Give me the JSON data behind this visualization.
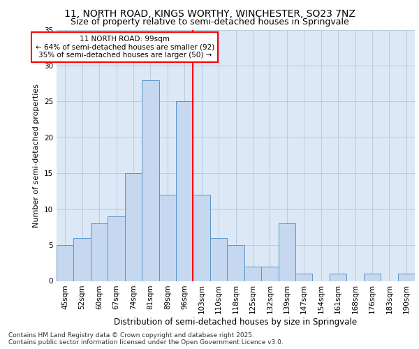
{
  "title1": "11, NORTH ROAD, KINGS WORTHY, WINCHESTER, SO23 7NZ",
  "title2": "Size of property relative to semi-detached houses in Springvale",
  "xlabel": "Distribution of semi-detached houses by size in Springvale",
  "ylabel": "Number of semi-detached properties",
  "categories": [
    "45sqm",
    "52sqm",
    "60sqm",
    "67sqm",
    "74sqm",
    "81sqm",
    "89sqm",
    "96sqm",
    "103sqm",
    "110sqm",
    "118sqm",
    "125sqm",
    "132sqm",
    "139sqm",
    "147sqm",
    "154sqm",
    "161sqm",
    "168sqm",
    "176sqm",
    "183sqm",
    "190sqm"
  ],
  "values": [
    5,
    6,
    8,
    9,
    15,
    28,
    12,
    25,
    12,
    6,
    5,
    2,
    2,
    8,
    1,
    0,
    1,
    0,
    1,
    0,
    1
  ],
  "bar_color": "#c5d8f0",
  "bar_edge_color": "#5a96c8",
  "grid_color": "#b8cce0",
  "background_color": "#dce8f5",
  "vline_color": "red",
  "annotation_text": "11 NORTH ROAD: 99sqm\n← 64% of semi-detached houses are smaller (92)\n35% of semi-detached houses are larger (50) →",
  "ylim": [
    0,
    35
  ],
  "yticks": [
    0,
    5,
    10,
    15,
    20,
    25,
    30,
    35
  ],
  "footer": "Contains HM Land Registry data © Crown copyright and database right 2025.\nContains public sector information licensed under the Open Government Licence v3.0.",
  "title1_fontsize": 10,
  "title2_fontsize": 9,
  "xlabel_fontsize": 8.5,
  "ylabel_fontsize": 8,
  "tick_fontsize": 7.5,
  "annotation_fontsize": 7.5,
  "footer_fontsize": 6.5
}
